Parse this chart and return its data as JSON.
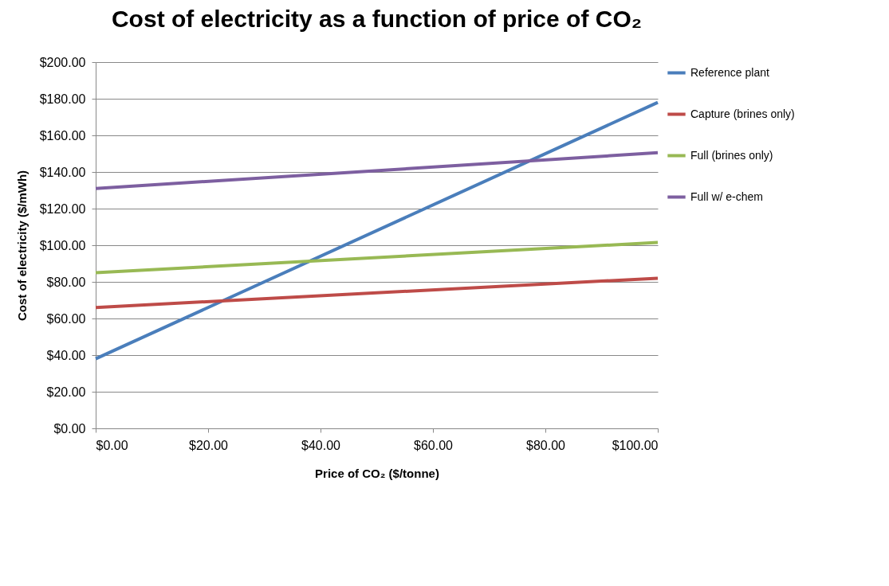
{
  "chart_data": {
    "type": "line",
    "title": "Cost of electricity as a function of price of CO₂",
    "xlabel": "Price of CO₂ ($/tonne)",
    "ylabel": "Cost of electricity ($/mWh)",
    "x": [
      0,
      100
    ],
    "series": [
      {
        "name": "Reference plant",
        "color": "#4a7ebb",
        "values": [
          38,
          178
        ]
      },
      {
        "name": "Capture (brines only)",
        "color": "#be4b48",
        "values": [
          66,
          82
        ]
      },
      {
        "name": "Full (brines only)",
        "color": "#98b954",
        "values": [
          85,
          101.5
        ]
      },
      {
        "name": "Full w/ e-chem",
        "color": "#7d5fa0",
        "values": [
          131,
          150.5
        ]
      }
    ],
    "xlim": [
      0,
      100
    ],
    "xticks": [
      {
        "value": 0,
        "label": "$0.00"
      },
      {
        "value": 20,
        "label": "$20.00"
      },
      {
        "value": 40,
        "label": "$40.00"
      },
      {
        "value": 60,
        "label": "$60.00"
      },
      {
        "value": 80,
        "label": "$80.00"
      },
      {
        "value": 100,
        "label": "$100.00"
      }
    ],
    "ylim": [
      0,
      200
    ],
    "yticks": [
      {
        "value": 0,
        "label": "$0.00"
      },
      {
        "value": 20,
        "label": "$20.00"
      },
      {
        "value": 40,
        "label": "$40.00"
      },
      {
        "value": 60,
        "label": "$60.00"
      },
      {
        "value": 80,
        "label": "$80.00"
      },
      {
        "value": 100,
        "label": "$100.00"
      },
      {
        "value": 120,
        "label": "$120.00"
      },
      {
        "value": 140,
        "label": "$140.00"
      },
      {
        "value": 160,
        "label": "$160.00"
      },
      {
        "value": 180,
        "label": "$180.00"
      },
      {
        "value": 200,
        "label": "$200.00"
      }
    ],
    "grid": "y",
    "legend": "right",
    "marker": "none",
    "line_style": "solid"
  }
}
